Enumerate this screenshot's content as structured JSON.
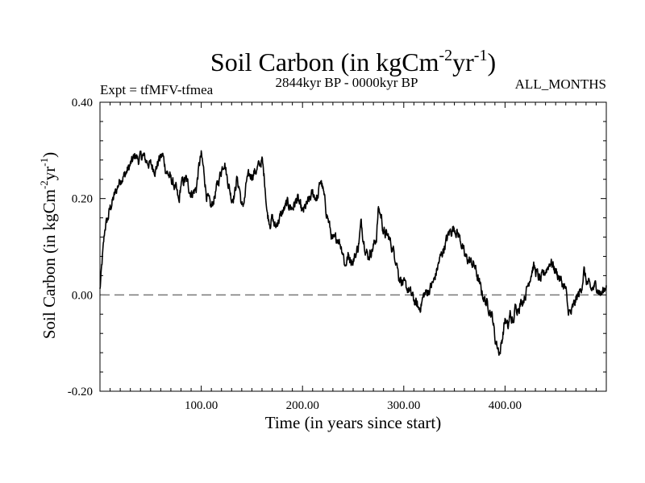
{
  "chart_data": {
    "type": "line",
    "title": {
      "prefix": "Soil Carbon (in kgCm",
      "sup1": "-2",
      "mid": "yr",
      "sup2": "-1",
      "suffix": ")"
    },
    "subtitle_left": "Expt = tfMFV-tfmea",
    "subtitle_center": "2844kyr BP - 0000kyr BP",
    "subtitle_right": "ALL_MONTHS",
    "xlabel": "Time (in years since start)",
    "ylabel": {
      "prefix": "Soil Carbon (in kgCm",
      "sup1": "-2",
      "mid": "yr",
      "sup2": "-1",
      "suffix": ")"
    },
    "xlim": [
      0,
      500
    ],
    "ylim": [
      -0.2,
      0.4
    ],
    "xticks": [
      100,
      200,
      300,
      400
    ],
    "xtick_labels": [
      "100.00",
      "200.00",
      "300.00",
      "400.00"
    ],
    "yticks": [
      0.4,
      0.2,
      0.0,
      -0.2
    ],
    "ytick_labels": [
      "0.40",
      "0.20",
      "0.00",
      "-0.20"
    ],
    "zero_line": 0.0,
    "series": [
      {
        "name": "Soil Carbon",
        "color": "#000000",
        "x": [
          0,
          3,
          5,
          8,
          10,
          15,
          20,
          25,
          30,
          35,
          38,
          42,
          45,
          50,
          55,
          58,
          62,
          65,
          70,
          75,
          78,
          80,
          85,
          90,
          95,
          98,
          100,
          103,
          105,
          108,
          110,
          115,
          120,
          123,
          125,
          128,
          130,
          133,
          135,
          138,
          140,
          143,
          145,
          150,
          155,
          160,
          163,
          165,
          168,
          170,
          173,
          175,
          180,
          185,
          190,
          195,
          200,
          205,
          210,
          215,
          218,
          220,
          223,
          225,
          228,
          230,
          235,
          240,
          242,
          245,
          250,
          255,
          258,
          260,
          263,
          265,
          270,
          273,
          275,
          278,
          280,
          285,
          290,
          293,
          295,
          298,
          300,
          305,
          310,
          315,
          317,
          320,
          325,
          330,
          335,
          340,
          345,
          350,
          355,
          358,
          360,
          365,
          370,
          375,
          378,
          380,
          385,
          388,
          390,
          393,
          395,
          398,
          400,
          403,
          405,
          408,
          410,
          415,
          420,
          425,
          428,
          430,
          435,
          440,
          445,
          450,
          455,
          460,
          462,
          465,
          470,
          475,
          478,
          480,
          485,
          490,
          495,
          500
        ],
        "y": [
          0.01,
          0.09,
          0.14,
          0.16,
          0.18,
          0.21,
          0.24,
          0.25,
          0.27,
          0.29,
          0.28,
          0.29,
          0.28,
          0.27,
          0.26,
          0.28,
          0.29,
          0.26,
          0.24,
          0.22,
          0.19,
          0.23,
          0.24,
          0.21,
          0.22,
          0.27,
          0.29,
          0.25,
          0.21,
          0.19,
          0.18,
          0.22,
          0.26,
          0.28,
          0.25,
          0.22,
          0.2,
          0.21,
          0.24,
          0.22,
          0.18,
          0.2,
          0.24,
          0.25,
          0.26,
          0.28,
          0.23,
          0.17,
          0.15,
          0.16,
          0.14,
          0.15,
          0.17,
          0.19,
          0.18,
          0.2,
          0.17,
          0.19,
          0.21,
          0.2,
          0.24,
          0.22,
          0.18,
          0.16,
          0.13,
          0.11,
          0.12,
          0.09,
          0.06,
          0.08,
          0.07,
          0.1,
          0.15,
          0.12,
          0.09,
          0.08,
          0.1,
          0.12,
          0.18,
          0.16,
          0.13,
          0.12,
          0.09,
          0.07,
          0.04,
          0.03,
          0.02,
          0.01,
          -0.01,
          -0.03,
          -0.02,
          0.0,
          0.01,
          0.03,
          0.07,
          0.1,
          0.13,
          0.14,
          0.12,
          0.1,
          0.08,
          0.07,
          0.06,
          0.02,
          0.0,
          -0.01,
          -0.03,
          -0.05,
          -0.09,
          -0.11,
          -0.12,
          -0.08,
          -0.05,
          -0.07,
          -0.04,
          -0.06,
          -0.03,
          -0.02,
          0.0,
          0.04,
          0.06,
          0.05,
          0.03,
          0.05,
          0.07,
          0.05,
          0.03,
          0.01,
          -0.03,
          -0.04,
          -0.01,
          0.01,
          0.05,
          0.03,
          0.01,
          0.02,
          0.0,
          0.02
        ]
      }
    ]
  }
}
